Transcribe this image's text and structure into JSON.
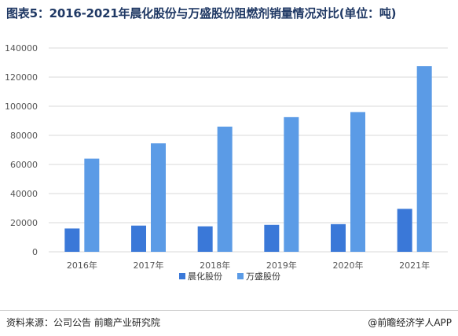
{
  "header": {
    "title": "图表5：2016-2021年晨化股份与万盛股份阻燃剂销量情况对比(单位：吨)"
  },
  "footer": {
    "source": "资料来源：公司公告 前瞻产业研究院",
    "credit": "@前瞻经济学人APP"
  },
  "colors": {
    "series_a": "#3a78d8",
    "series_b": "#5b9be6",
    "grid": "#d9d9d9"
  },
  "chart_data": {
    "type": "bar",
    "categories": [
      "2016年",
      "2017年",
      "2018年",
      "2019年",
      "2020年",
      "2021年"
    ],
    "series": [
      {
        "name": "晨化股份",
        "values": [
          16000,
          18000,
          17500,
          18500,
          19000,
          29500
        ]
      },
      {
        "name": "万盛股份",
        "values": [
          64000,
          74500,
          86000,
          92500,
          96000,
          127500
        ]
      }
    ],
    "yticks": [
      "0",
      "20000",
      "40000",
      "60000",
      "80000",
      "100000",
      "120000",
      "140000"
    ],
    "ylim": [
      0,
      140000
    ],
    "grid": true,
    "legend_position": "bottom"
  }
}
